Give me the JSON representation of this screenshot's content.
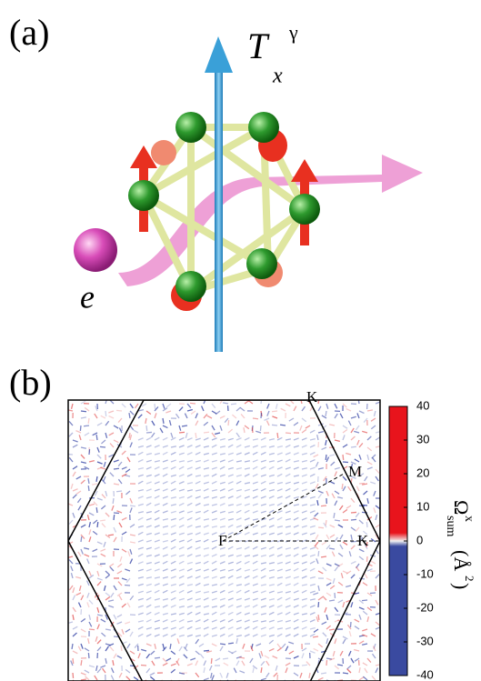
{
  "panel_a": {
    "label": "(a)",
    "operator_main": "T",
    "operator_sub": "x",
    "operator_sup": "γ",
    "electron": "e"
  },
  "panel_b": {
    "label": "(b)",
    "point_k_top": "K",
    "point_m": "M",
    "point_gamma": "Γ",
    "point_k_right": "K",
    "colorbar": {
      "lim": [
        -40,
        40
      ],
      "ticks": [
        40,
        30,
        20,
        10,
        0,
        -10,
        -20,
        -30,
        -40
      ],
      "label_main": "Ω",
      "label_sup": "x",
      "label_sub": "sum",
      "unit_open": "(Å",
      "unit_sup": "2",
      "unit_close": ")"
    }
  }
}
